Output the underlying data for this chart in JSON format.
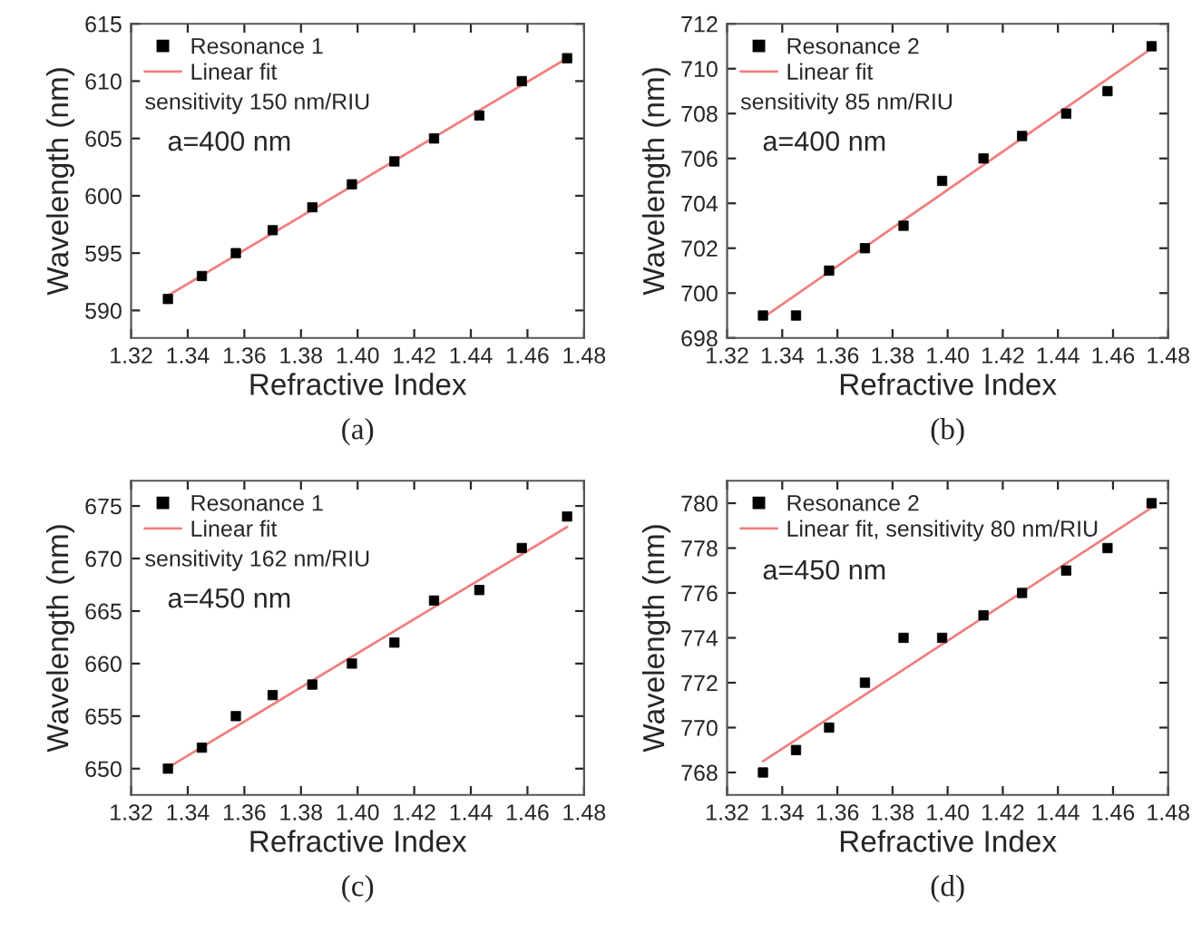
{
  "chart_data": [
    {
      "type": "scatter",
      "xlabel": "Refractive Index",
      "ylabel": "Wavelength (nm)",
      "xlim": [
        1.32,
        1.48
      ],
      "xticks": [
        {
          "value": 1.32,
          "label": "1.32"
        },
        {
          "value": 1.34,
          "label": "1.34"
        },
        {
          "value": 1.36,
          "label": "1.36"
        },
        {
          "value": 1.38,
          "label": "1.38"
        },
        {
          "value": 1.4,
          "label": "1.40"
        },
        {
          "value": 1.42,
          "label": "1.42"
        },
        {
          "value": 1.44,
          "label": "1.44"
        },
        {
          "value": 1.46,
          "label": "1.46"
        },
        {
          "value": 1.48,
          "label": "1.48"
        }
      ],
      "ylim": [
        587.6,
        615
      ],
      "yticks": [
        590,
        595,
        600,
        605,
        610,
        615
      ],
      "legend": "top left",
      "grid": false,
      "series": [
        {
          "name": "Resonance 1",
          "color": "#000000",
          "marker": "square",
          "x": [
            1.333,
            1.345,
            1.357,
            1.37,
            1.384,
            1.398,
            1.413,
            1.427,
            1.443,
            1.458,
            1.474
          ],
          "values": [
            591,
            593,
            595,
            597,
            599,
            601,
            603,
            605,
            607,
            610,
            612
          ]
        },
        {
          "name": "Linear fit",
          "type": "line",
          "color": "#f08080",
          "x": [
            1.333,
            1.474
          ],
          "values": [
            591.3,
            612
          ]
        }
      ],
      "annotations": [
        "sensitivity 150 nm/RIU",
        "a=400 nm",
        "(a)"
      ]
    },
    {
      "type": "scatter",
      "xlabel": "Refractive Index",
      "ylabel": "Wavelength (nm)",
      "xlim": [
        1.32,
        1.48
      ],
      "xticks": [
        {
          "value": 1.32,
          "label": "1.32"
        },
        {
          "value": 1.34,
          "label": "1.34"
        },
        {
          "value": 1.36,
          "label": "1.36"
        },
        {
          "value": 1.38,
          "label": "1.38"
        },
        {
          "value": 1.4,
          "label": "1.40"
        },
        {
          "value": 1.42,
          "label": "1.42"
        },
        {
          "value": 1.44,
          "label": "1.44"
        },
        {
          "value": 1.46,
          "label": "1.46"
        },
        {
          "value": 1.48,
          "label": "1.48"
        }
      ],
      "ylim": [
        698,
        712
      ],
      "yticks": [
        698,
        700,
        702,
        704,
        706,
        708,
        710,
        712
      ],
      "legend": "top left",
      "grid": false,
      "series": [
        {
          "name": "Resonance 2",
          "color": "#000000",
          "marker": "square",
          "x": [
            1.333,
            1.345,
            1.357,
            1.37,
            1.384,
            1.398,
            1.413,
            1.427,
            1.443,
            1.458,
            1.474
          ],
          "values": [
            699,
            699,
            701,
            702,
            703,
            705,
            706,
            707,
            708,
            709,
            711
          ]
        },
        {
          "name": "Linear fit",
          "type": "line",
          "color": "#f08080",
          "x": [
            1.333,
            1.474
          ],
          "values": [
            698.9,
            710.9
          ]
        }
      ],
      "annotations": [
        "sensitivity 85 nm/RIU",
        "a=400 nm",
        "(b)"
      ]
    },
    {
      "type": "scatter",
      "xlabel": "Refractive Index",
      "ylabel": "Wavelength (nm)",
      "xlim": [
        1.32,
        1.48
      ],
      "xticks": [
        {
          "value": 1.32,
          "label": "1.32"
        },
        {
          "value": 1.34,
          "label": "1.34"
        },
        {
          "value": 1.36,
          "label": "1.36"
        },
        {
          "value": 1.38,
          "label": "1.38"
        },
        {
          "value": 1.4,
          "label": "1.40"
        },
        {
          "value": 1.42,
          "label": "1.42"
        },
        {
          "value": 1.44,
          "label": "1.44"
        },
        {
          "value": 1.46,
          "label": "1.46"
        },
        {
          "value": 1.48,
          "label": "1.48"
        }
      ],
      "ylim": [
        647.5,
        677.4
      ],
      "yticks": [
        650,
        655,
        660,
        665,
        670,
        675
      ],
      "legend": "top left",
      "grid": false,
      "series": [
        {
          "name": "Resonance 1",
          "color": "#000000",
          "marker": "square",
          "x": [
            1.333,
            1.345,
            1.357,
            1.37,
            1.384,
            1.398,
            1.413,
            1.427,
            1.443,
            1.458,
            1.474
          ],
          "values": [
            650,
            652,
            655,
            657,
            658,
            660,
            662,
            666,
            667,
            671,
            674
          ]
        },
        {
          "name": "Linear fit",
          "type": "line",
          "color": "#f08080",
          "x": [
            1.333,
            1.474
          ],
          "values": [
            650.1,
            673
          ]
        }
      ],
      "annotations": [
        "sensitivity 162 nm/RIU",
        "a=450 nm",
        "(c)"
      ]
    },
    {
      "type": "scatter",
      "xlabel": "Refractive Index",
      "ylabel": "Wavelength (nm)",
      "xlim": [
        1.32,
        1.48
      ],
      "xticks": [
        {
          "value": 1.32,
          "label": "1.32"
        },
        {
          "value": 1.34,
          "label": "1.34"
        },
        {
          "value": 1.36,
          "label": "1.36"
        },
        {
          "value": 1.38,
          "label": "1.38"
        },
        {
          "value": 1.4,
          "label": "1.40"
        },
        {
          "value": 1.42,
          "label": "1.42"
        },
        {
          "value": 1.44,
          "label": "1.44"
        },
        {
          "value": 1.46,
          "label": "1.46"
        },
        {
          "value": 1.48,
          "label": "1.48"
        }
      ],
      "ylim": [
        767,
        781
      ],
      "yticks": [
        768,
        770,
        772,
        774,
        776,
        778,
        780
      ],
      "legend": "top left",
      "grid": false,
      "series": [
        {
          "name": "Resonance 2",
          "color": "#000000",
          "marker": "square",
          "x": [
            1.333,
            1.345,
            1.357,
            1.37,
            1.384,
            1.398,
            1.413,
            1.427,
            1.443,
            1.458,
            1.474
          ],
          "values": [
            768,
            769,
            770,
            772,
            774,
            774,
            775,
            776,
            777,
            778,
            780
          ]
        },
        {
          "name": "Linear fit, sensitivity 80 nm/RIU",
          "type": "line",
          "color": "#f08080",
          "x": [
            1.333,
            1.474
          ],
          "values": [
            768.5,
            779.8
          ]
        }
      ],
      "annotations": [
        "a=450 nm",
        "(d)"
      ]
    }
  ]
}
